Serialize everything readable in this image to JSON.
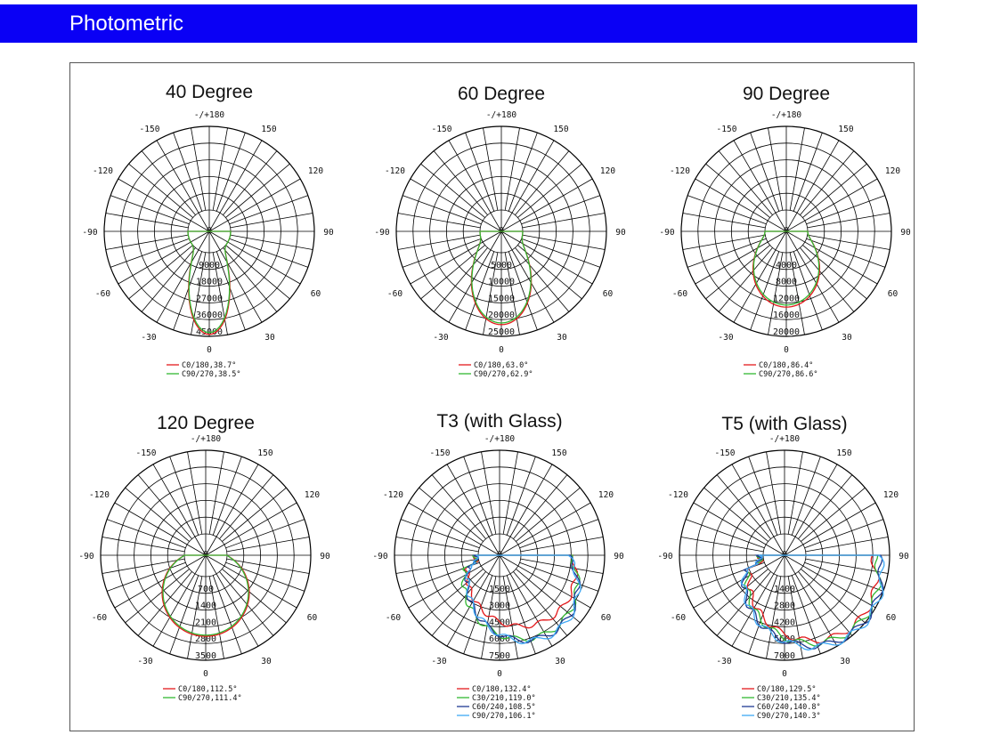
{
  "header": {
    "title": "Photometric"
  },
  "colors": {
    "header_bg": "#0a00f5",
    "red": "#e31a1c",
    "green": "#33b833",
    "blue": "#1f3a93",
    "cyan": "#3fa9f5"
  },
  "chart_data": [
    {
      "type": "polar-line",
      "title": "40 Degree",
      "angle_labels": {
        "top": "-/+180",
        "tl150": "-150",
        "tr150": "150",
        "l120": "-120",
        "r120": "120",
        "l90": "-90",
        "r90": "90",
        "l60": "-60",
        "r60": "60",
        "l30": "-30",
        "r30": "30",
        "bottom": "0"
      },
      "radial_max": 45000,
      "radial_ticks": [
        "9000",
        "18000",
        "27000",
        "36000",
        "45000"
      ],
      "series": [
        {
          "name": "C0/180,38.7°",
          "color": "#e31a1c",
          "beam_angle": 38.7,
          "peak": 44000
        },
        {
          "name": "C90/270,38.5°",
          "color": "#33b833",
          "beam_angle": 38.5,
          "peak": 43000
        }
      ]
    },
    {
      "type": "polar-line",
      "title": "60 Degree",
      "angle_labels": {
        "top": "-/+180",
        "tl150": "-150",
        "tr150": "150",
        "l120": "-120",
        "r120": "120",
        "l90": "-90",
        "r90": "90",
        "l60": "-60",
        "r60": "60",
        "l30": "-30",
        "r30": "30",
        "bottom": "0"
      },
      "radial_max": 25000,
      "radial_ticks": [
        "5000",
        "10000",
        "15000",
        "20000",
        "25000"
      ],
      "series": [
        {
          "name": "C0/180,63.0°",
          "color": "#e31a1c",
          "beam_angle": 63.0,
          "peak": 21500
        },
        {
          "name": "C90/270,62.9°",
          "color": "#33b833",
          "beam_angle": 62.9,
          "peak": 21000
        }
      ]
    },
    {
      "type": "polar-line",
      "title": "90 Degree",
      "angle_labels": {
        "top": "-/+180",
        "tl150": "-150",
        "tr150": "150",
        "l120": "-120",
        "r120": "120",
        "l90": "-90",
        "r90": "90",
        "l60": "-60",
        "r60": "60",
        "l30": "-30",
        "r30": "30",
        "bottom": "0"
      },
      "radial_max": 20000,
      "radial_ticks": [
        "4000",
        "8000",
        "12000",
        "16000",
        "20000"
      ],
      "series": [
        {
          "name": "C0/180,86.4°",
          "color": "#e31a1c",
          "beam_angle": 86.4,
          "peak": 13000
        },
        {
          "name": "C90/270,86.6°",
          "color": "#33b833",
          "beam_angle": 86.6,
          "peak": 12500
        }
      ]
    },
    {
      "type": "polar-line",
      "title": "120 Degree",
      "angle_labels": {
        "top": "-/+180",
        "tl150": "-150",
        "tr150": "150",
        "l120": "-120",
        "r120": "120",
        "l90": "-90",
        "r90": "90",
        "l60": "-60",
        "r60": "60",
        "l30": "-30",
        "r30": "30",
        "bottom": "0"
      },
      "radial_max": 3500,
      "radial_ticks": [
        "700",
        "1400",
        "2100",
        "2800",
        "3500"
      ],
      "series": [
        {
          "name": "C0/180,112.5°",
          "color": "#e31a1c",
          "beam_angle": 112.5,
          "peak": 2500
        },
        {
          "name": "C90/270,111.4°",
          "color": "#33b833",
          "beam_angle": 111.4,
          "peak": 2450
        }
      ]
    },
    {
      "type": "polar-line",
      "title": "T3 (with Glass)",
      "angle_labels": {
        "top": "-/+180",
        "tl150": "-150",
        "tr150": "150",
        "l120": "-120",
        "r120": "120",
        "l90": "-90",
        "r90": "90",
        "l60": "-60",
        "r60": "60",
        "l30": "-30",
        "r30": "30",
        "bottom": "0"
      },
      "radial_max": 7500,
      "radial_ticks": [
        "1500",
        "3000",
        "4500",
        "6000",
        "7500"
      ],
      "series": [
        {
          "name": "C0/180,132.4°",
          "color": "#e31a1c",
          "beam_angle": 132.4,
          "peak": 5400
        },
        {
          "name": "C30/210,119.0°",
          "color": "#33b833",
          "beam_angle": 119.0,
          "peak": 6300
        },
        {
          "name": "C60/240,108.5°",
          "color": "#1f3a93",
          "beam_angle": 108.5,
          "peak": 6500
        },
        {
          "name": "C90/270,106.1°",
          "color": "#3fa9f5",
          "beam_angle": 106.1,
          "peak": 6600
        }
      ]
    },
    {
      "type": "polar-line",
      "title": "T5 (with Glass)",
      "angle_labels": {
        "top": "-/+180",
        "tl150": "-150",
        "tr150": "150",
        "l120": "-120",
        "r120": "120",
        "l90": "-90",
        "r90": "90",
        "l60": "-60",
        "r60": "60",
        "l30": "-30",
        "r30": "30",
        "bottom": "0"
      },
      "radial_max": 7000,
      "radial_ticks": [
        "1400",
        "2800",
        "4200",
        "5600",
        "7000"
      ],
      "series": [
        {
          "name": "C0/180,129.5°",
          "color": "#e31a1c",
          "beam_angle": 129.5,
          "peak": 6500
        },
        {
          "name": "C30/210,135.4°",
          "color": "#33b833",
          "beam_angle": 135.4,
          "peak": 6700
        },
        {
          "name": "C60/240,140.8°",
          "color": "#1f3a93",
          "beam_angle": 140.8,
          "peak": 6900
        },
        {
          "name": "C90/270,140.3°",
          "color": "#3fa9f5",
          "beam_angle": 140.3,
          "peak": 7000
        }
      ]
    }
  ]
}
